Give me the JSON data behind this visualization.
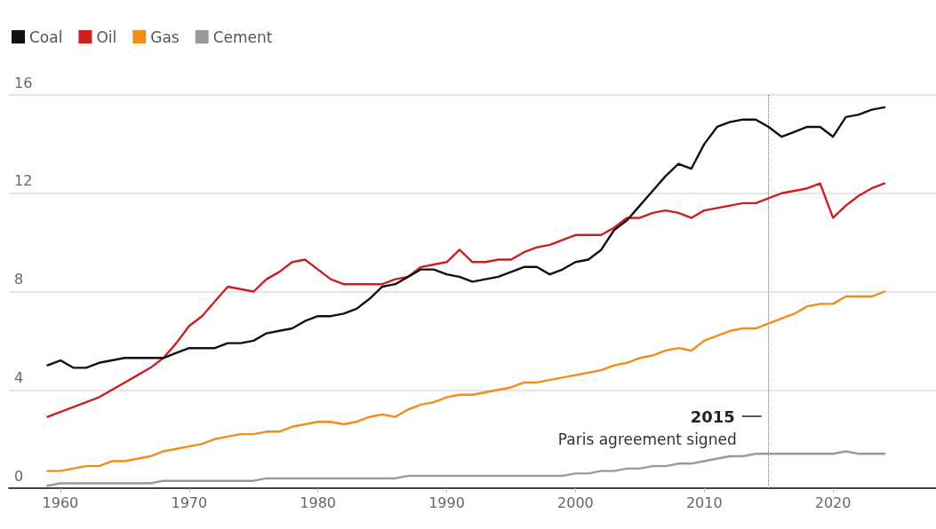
{
  "chart_data": {
    "type": "line",
    "x": [
      1959,
      1960,
      1961,
      1962,
      1963,
      1964,
      1965,
      1966,
      1967,
      1968,
      1969,
      1970,
      1971,
      1972,
      1973,
      1974,
      1975,
      1976,
      1977,
      1978,
      1979,
      1980,
      1981,
      1982,
      1983,
      1984,
      1985,
      1986,
      1987,
      1988,
      1989,
      1990,
      1991,
      1992,
      1993,
      1994,
      1995,
      1996,
      1997,
      1998,
      1999,
      2000,
      2001,
      2002,
      2003,
      2004,
      2005,
      2006,
      2007,
      2008,
      2009,
      2010,
      2011,
      2012,
      2013,
      2014,
      2015,
      2016,
      2017,
      2018,
      2019,
      2020,
      2021,
      2022,
      2023,
      2024
    ],
    "series": [
      {
        "name": "Coal",
        "color": "#111111",
        "values": [
          5.0,
          5.2,
          4.9,
          4.9,
          5.1,
          5.2,
          5.3,
          5.3,
          5.3,
          5.3,
          5.5,
          5.7,
          5.7,
          5.7,
          5.9,
          5.9,
          6.0,
          6.3,
          6.4,
          6.5,
          6.8,
          7.0,
          7.0,
          7.1,
          7.3,
          7.7,
          8.2,
          8.3,
          8.6,
          8.9,
          8.9,
          8.7,
          8.6,
          8.4,
          8.5,
          8.6,
          8.8,
          9.0,
          9.0,
          8.7,
          8.9,
          9.2,
          9.3,
          9.7,
          10.5,
          10.9,
          11.5,
          12.1,
          12.7,
          13.2,
          13.0,
          14.0,
          14.7,
          14.9,
          15.0,
          15.0,
          14.7,
          14.3,
          14.5,
          14.7,
          14.7,
          14.3,
          15.1,
          15.2,
          15.4,
          15.5
        ]
      },
      {
        "name": "Oil",
        "color": "#cc1f1f",
        "values": [
          2.9,
          3.1,
          3.3,
          3.5,
          3.7,
          4.0,
          4.3,
          4.6,
          4.9,
          5.3,
          5.9,
          6.6,
          7.0,
          7.6,
          8.2,
          8.1,
          8.0,
          8.5,
          8.8,
          9.2,
          9.3,
          8.9,
          8.5,
          8.3,
          8.3,
          8.3,
          8.3,
          8.5,
          8.6,
          9.0,
          9.1,
          9.2,
          9.7,
          9.2,
          9.2,
          9.3,
          9.3,
          9.6,
          9.8,
          9.9,
          10.1,
          10.3,
          10.3,
          10.3,
          10.6,
          11.0,
          11.0,
          11.2,
          11.3,
          11.2,
          11.0,
          11.3,
          11.4,
          11.5,
          11.6,
          11.6,
          11.8,
          12.0,
          12.1,
          12.2,
          12.4,
          11.0,
          11.5,
          11.9,
          12.2,
          12.4
        ]
      },
      {
        "name": "Gas",
        "color": "#f28c1a",
        "values": [
          0.7,
          0.7,
          0.8,
          0.9,
          0.9,
          1.1,
          1.1,
          1.2,
          1.3,
          1.5,
          1.6,
          1.7,
          1.8,
          2.0,
          2.1,
          2.2,
          2.2,
          2.3,
          2.3,
          2.5,
          2.6,
          2.7,
          2.7,
          2.6,
          2.7,
          2.9,
          3.0,
          2.9,
          3.2,
          3.4,
          3.5,
          3.7,
          3.8,
          3.8,
          3.9,
          4.0,
          4.1,
          4.3,
          4.3,
          4.4,
          4.5,
          4.6,
          4.7,
          4.8,
          5.0,
          5.1,
          5.3,
          5.4,
          5.6,
          5.7,
          5.6,
          6.0,
          6.2,
          6.4,
          6.5,
          6.5,
          6.7,
          6.9,
          7.1,
          7.4,
          7.5,
          7.5,
          7.8,
          7.8,
          7.8,
          8.0
        ]
      },
      {
        "name": "Cement",
        "color": "#999999",
        "values": [
          0.1,
          0.2,
          0.2,
          0.2,
          0.2,
          0.2,
          0.2,
          0.2,
          0.2,
          0.3,
          0.3,
          0.3,
          0.3,
          0.3,
          0.3,
          0.3,
          0.3,
          0.4,
          0.4,
          0.4,
          0.4,
          0.4,
          0.4,
          0.4,
          0.4,
          0.4,
          0.4,
          0.4,
          0.5,
          0.5,
          0.5,
          0.5,
          0.5,
          0.5,
          0.5,
          0.5,
          0.5,
          0.5,
          0.5,
          0.5,
          0.5,
          0.6,
          0.6,
          0.7,
          0.7,
          0.8,
          0.8,
          0.9,
          0.9,
          1.0,
          1.0,
          1.1,
          1.2,
          1.3,
          1.3,
          1.4,
          1.4,
          1.4,
          1.4,
          1.4,
          1.4,
          1.4,
          1.5,
          1.4,
          1.4,
          1.4
        ]
      }
    ],
    "xlim": [
      1956,
      2028
    ],
    "xticks": [
      1960,
      1970,
      1980,
      1990,
      2000,
      2010,
      2020
    ],
    "ylim": [
      0,
      16
    ],
    "yticks": [
      0,
      4,
      8,
      12,
      16
    ],
    "grid": "y",
    "legend": "top left",
    "marker": "none",
    "line_style": "solid",
    "ref_lines": [
      {
        "axis": "x",
        "value": 2015,
        "label": "2015",
        "color": "#777777",
        "line_style": "dotted"
      }
    ],
    "annotations": [
      "Paris agreement signed"
    ]
  }
}
